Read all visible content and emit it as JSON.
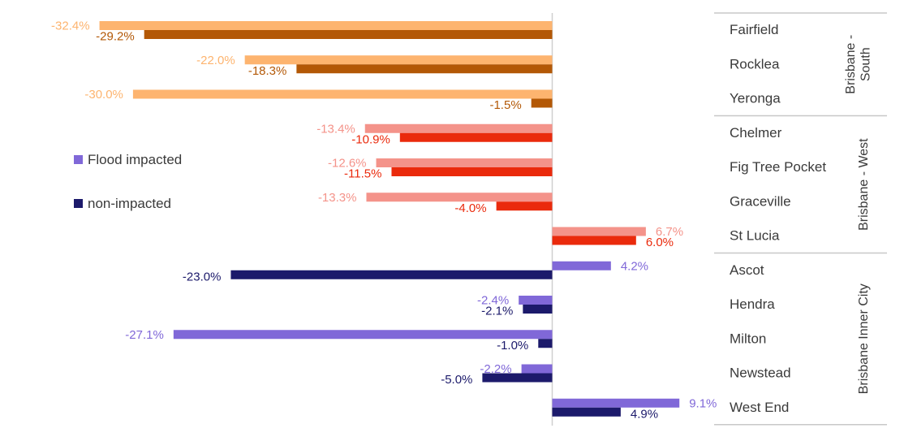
{
  "chart_data": {
    "type": "bar",
    "orientation": "horizontal",
    "grid": false,
    "legend_position": "left-middle",
    "legend": [
      {
        "label": "Flood impacted",
        "color": "#8068d8"
      },
      {
        "label": "non-impacted",
        "color": "#1c1a6b"
      }
    ],
    "groups": [
      {
        "region": "Brisbane - South",
        "impacted_color": "#fdb46f",
        "non_impacted_color": "#b35806",
        "suburbs": [
          {
            "name": "Fairfield",
            "impacted": -32.4,
            "impacted_label": "-32.4%",
            "non_impacted": -29.2,
            "non_impacted_label": "-29.2%"
          },
          {
            "name": "Rocklea",
            "impacted": -22.0,
            "impacted_label": "-22.0%",
            "non_impacted": -18.3,
            "non_impacted_label": "-18.3%"
          },
          {
            "name": "Yeronga",
            "impacted": -30.0,
            "impacted_label": "-30.0%",
            "non_impacted": -1.5,
            "non_impacted_label": "-1.5%"
          }
        ]
      },
      {
        "region": "Brisbane - West",
        "impacted_color": "#f4938a",
        "non_impacted_color": "#ea2a0c",
        "suburbs": [
          {
            "name": "Chelmer",
            "impacted": -13.4,
            "impacted_label": "-13.4%",
            "non_impacted": -10.9,
            "non_impacted_label": "-10.9%"
          },
          {
            "name": "Fig Tree Pocket",
            "impacted": -12.6,
            "impacted_label": "-12.6%",
            "non_impacted": -11.5,
            "non_impacted_label": "-11.5%"
          },
          {
            "name": "Graceville",
            "impacted": -13.3,
            "impacted_label": "-13.3%",
            "non_impacted": -4.0,
            "non_impacted_label": "-4.0%"
          },
          {
            "name": "St Lucia",
            "impacted": 6.7,
            "impacted_label": "6.7%",
            "non_impacted": 6.0,
            "non_impacted_label": "6.0%"
          }
        ]
      },
      {
        "region": "Brisbane Inner City",
        "impacted_color": "#8068d8",
        "non_impacted_color": "#1c1a6b",
        "suburbs": [
          {
            "name": "Ascot",
            "impacted": 4.2,
            "impacted_label": "4.2%",
            "non_impacted": -23.0,
            "non_impacted_label": "-23.0%"
          },
          {
            "name": "Hendra",
            "impacted": -2.4,
            "impacted_label": "-2.4%",
            "non_impacted": -2.1,
            "non_impacted_label": "-2.1%"
          },
          {
            "name": "Milton",
            "impacted": -27.1,
            "impacted_label": "-27.1%",
            "non_impacted": -1.0,
            "non_impacted_label": "-1.0%"
          },
          {
            "name": "Newstead",
            "impacted": -2.2,
            "impacted_label": "-2.2%",
            "non_impacted": -5.0,
            "non_impacted_label": "-5.0%"
          },
          {
            "name": "West End",
            "impacted": 9.1,
            "impacted_label": "9.1%",
            "non_impacted": 4.9,
            "non_impacted_label": "4.9%"
          }
        ]
      }
    ]
  }
}
